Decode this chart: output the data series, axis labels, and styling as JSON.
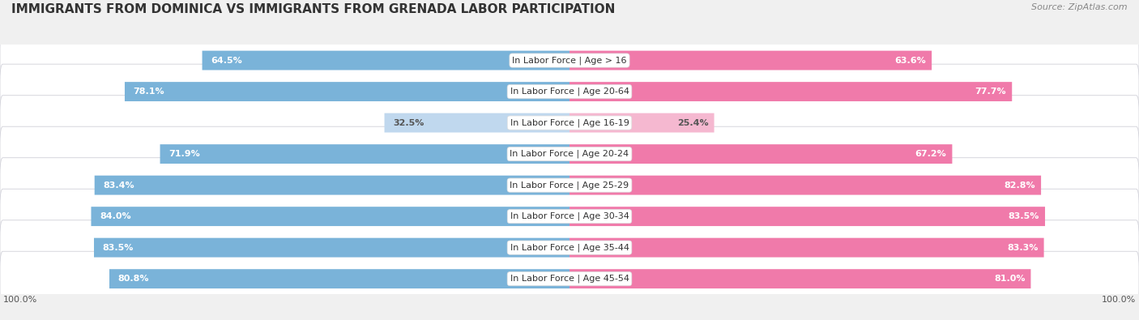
{
  "title": "IMMIGRANTS FROM DOMINICA VS IMMIGRANTS FROM GRENADA LABOR PARTICIPATION",
  "source": "Source: ZipAtlas.com",
  "categories": [
    "In Labor Force | Age > 16",
    "In Labor Force | Age 20-64",
    "In Labor Force | Age 16-19",
    "In Labor Force | Age 20-24",
    "In Labor Force | Age 25-29",
    "In Labor Force | Age 30-34",
    "In Labor Force | Age 35-44",
    "In Labor Force | Age 45-54"
  ],
  "dominica_values": [
    64.5,
    78.1,
    32.5,
    71.9,
    83.4,
    84.0,
    83.5,
    80.8
  ],
  "grenada_values": [
    63.6,
    77.7,
    25.4,
    67.2,
    82.8,
    83.5,
    83.3,
    81.0
  ],
  "dominica_color": "#7ab3d9",
  "grenada_color": "#f07aaa",
  "dominica_color_light": "#c0d8ee",
  "grenada_color_light": "#f5b8d0",
  "bg_color": "#f0f0f0",
  "row_bg_color": "#ffffff",
  "row_border_color": "#d0d0d8",
  "title_fontsize": 11,
  "label_fontsize": 8,
  "value_fontsize": 8,
  "legend_fontsize": 9,
  "max_val": 100.0
}
